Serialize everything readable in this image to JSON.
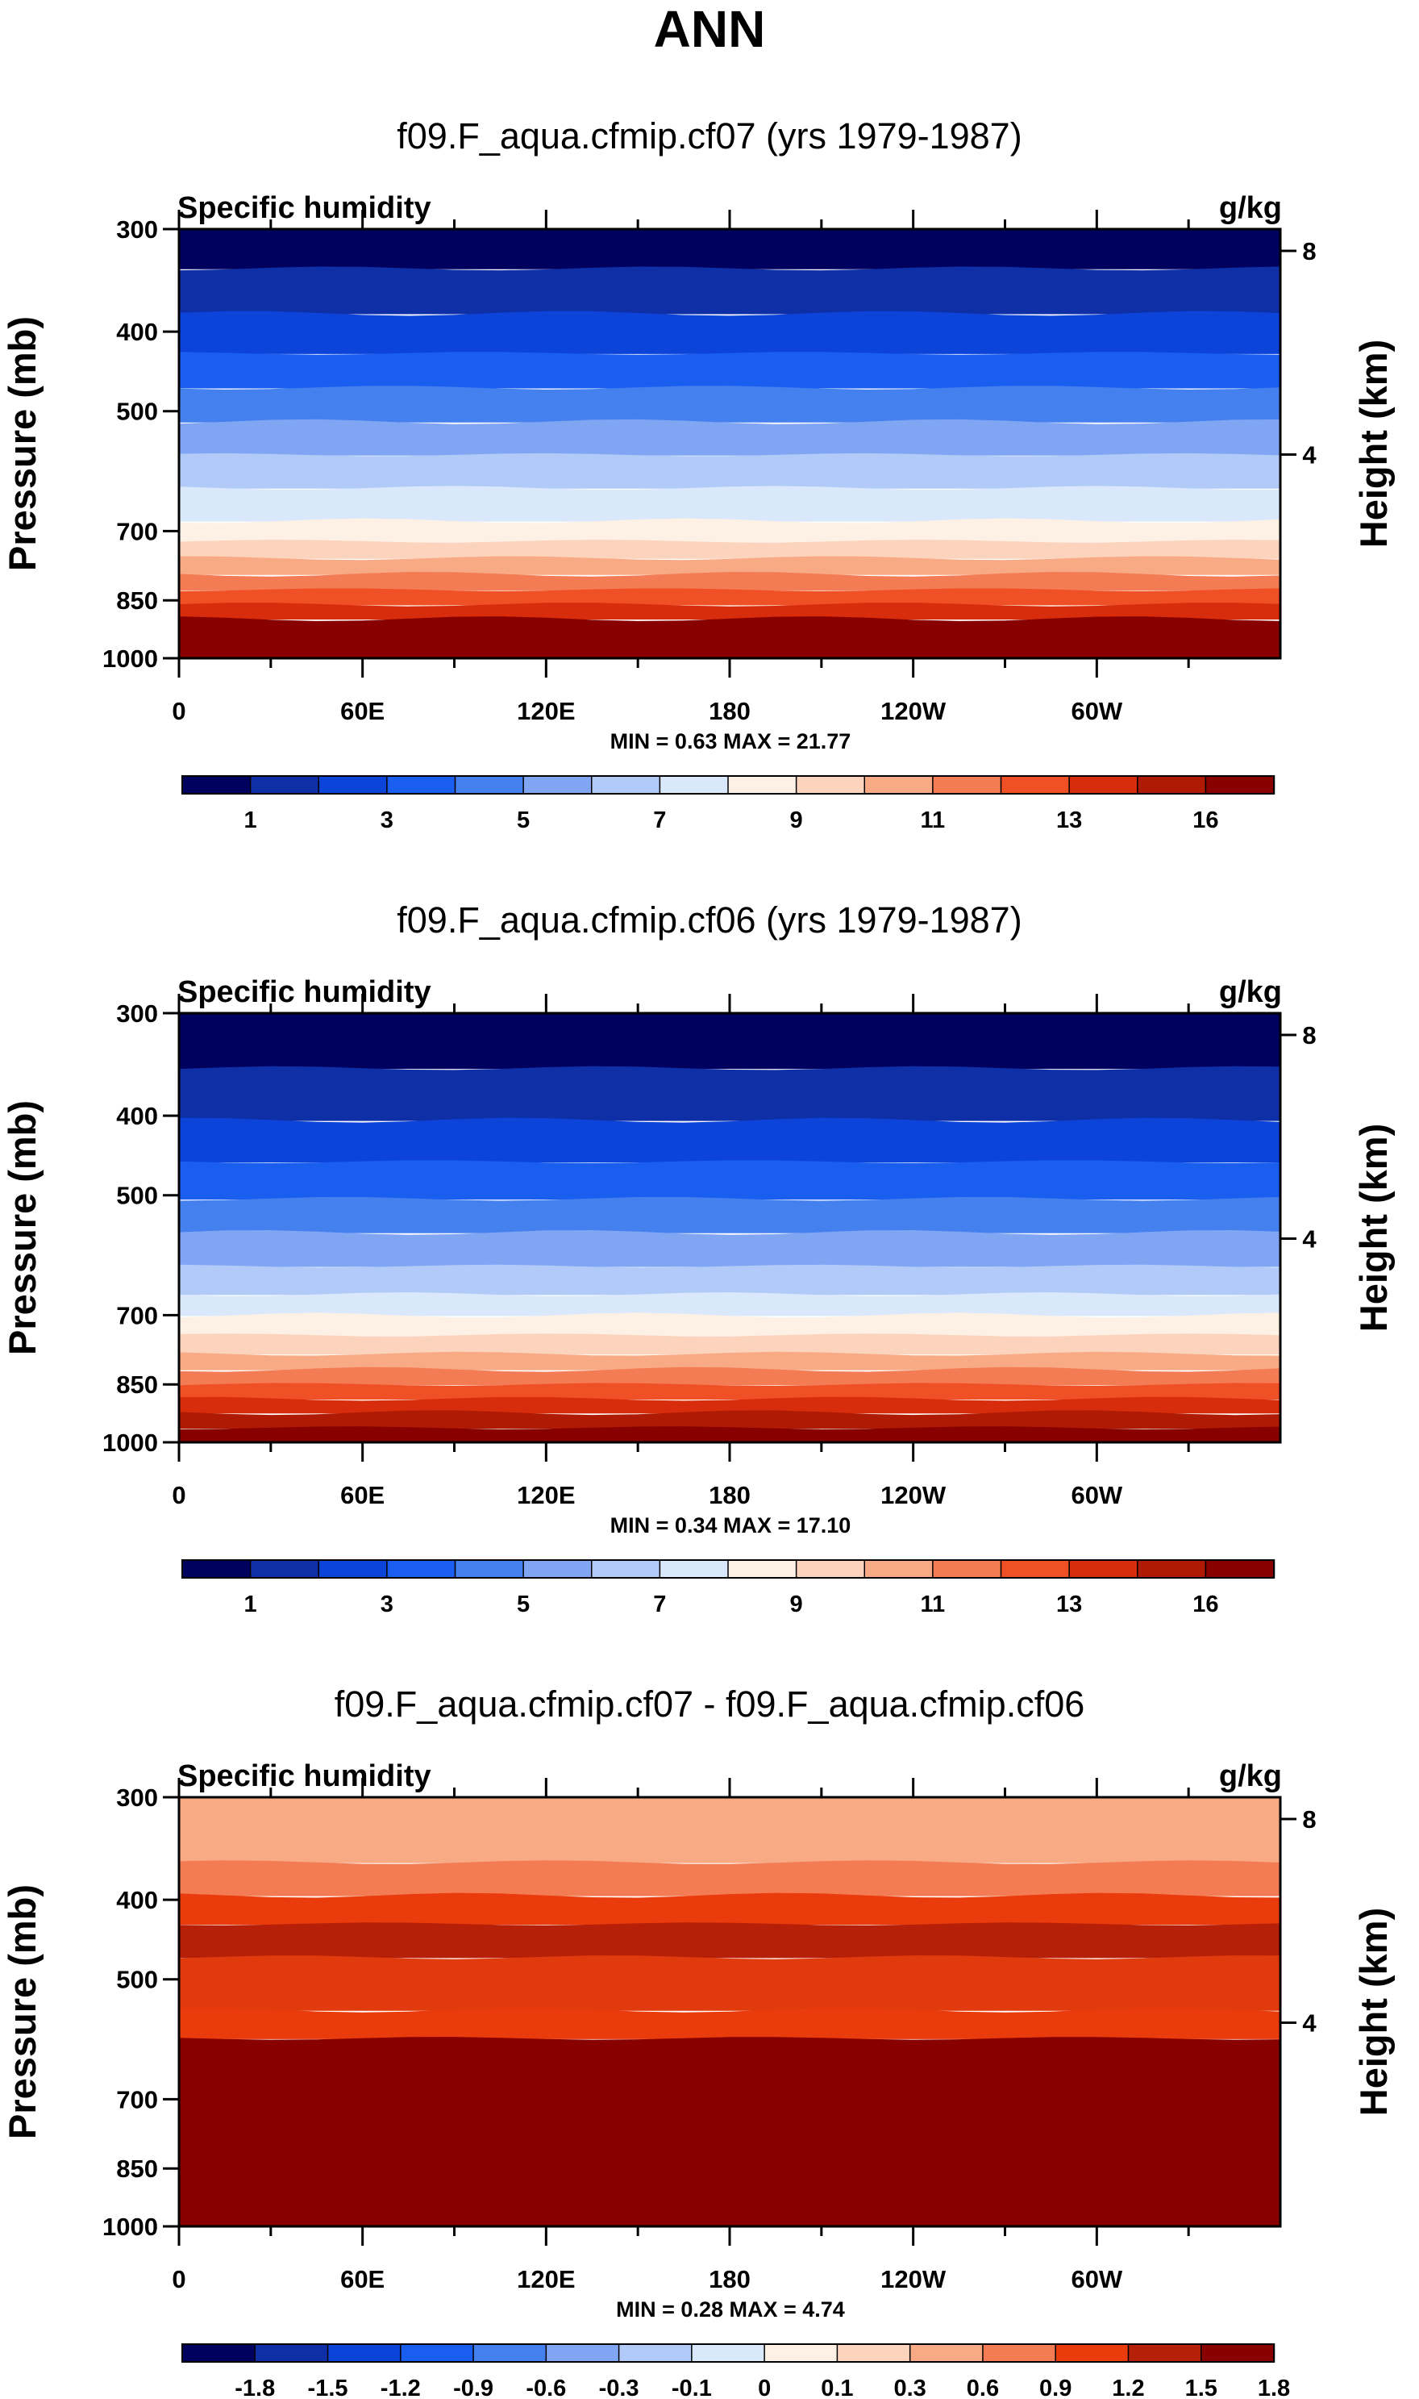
{
  "title": "ANN",
  "panels": [
    {
      "title": "f09.F_aqua.cfmip.cf07 (yrs 1979-1987)",
      "variable": "Specific humidity",
      "units": "g/kg",
      "min_label": "MIN =",
      "min_value": "0.63",
      "max_label": "MAX =",
      "max_value": "21.77"
    },
    {
      "title": "f09.F_aqua.cfmip.cf06 (yrs 1979-1987)",
      "variable": "Specific humidity",
      "units": "g/kg",
      "min_label": "MIN =",
      "min_value": "0.34",
      "max_label": "MAX =",
      "max_value": "17.10"
    },
    {
      "title": "f09.F_aqua.cfmip.cf07 - f09.F_aqua.cfmip.cf06",
      "variable": "Specific humidity",
      "units": "g/kg",
      "min_label": "MIN =",
      "min_value": "0.28",
      "max_label": "MAX =",
      "max_value": "4.74"
    }
  ],
  "colors": {
    "model_palette": [
      "#00005f",
      "#0f2fa7",
      "#0c43d9",
      "#1a5ef0",
      "#4580ef",
      "#7fa5f3",
      "#b1caf8",
      "#d9e9fb",
      "#fdf0e4",
      "#fcd3bd",
      "#f8aa85",
      "#f47c55",
      "#f05025",
      "#d72d0d",
      "#af1a05",
      "#880000"
    ],
    "diff_palette": [
      "#00005f",
      "#0f2fa7",
      "#0c43d9",
      "#1a5ef0",
      "#4580ef",
      "#7fa5f3",
      "#b1caf8",
      "#d9e9fb",
      "#fdf0e4",
      "#fcd3bd",
      "#f8aa85",
      "#f47c55",
      "#ea3b0c",
      "#b72008",
      "#880000"
    ]
  },
  "chart_data": [
    {
      "type": "contour",
      "title": "f09.F_aqua.cfmip.cf07 (yrs 1979-1987)",
      "variable": "Specific humidity",
      "units": "g/kg",
      "x_ticks": [
        "0",
        "60E",
        "120E",
        "180",
        "120W",
        "60W"
      ],
      "x_tick_degrees": [
        0,
        60,
        120,
        180,
        240,
        300
      ],
      "xlim": [
        0,
        360
      ],
      "y_ticks": [
        "300",
        "400",
        "500",
        "700",
        "850",
        "1000"
      ],
      "y_tick_values": [
        300,
        400,
        500,
        700,
        850,
        1000
      ],
      "ylim": [
        1000,
        300
      ],
      "yscale": "log",
      "ylabel": "Pressure (mb)",
      "y2label": "Height (km)",
      "y2_ticks": [
        "8",
        "4"
      ],
      "y2_tick_values_km": [
        8,
        4
      ],
      "colorbar_levels": [
        0.5,
        1,
        2,
        3,
        4,
        5,
        6,
        7,
        8,
        9,
        10,
        11,
        12,
        13,
        14,
        16
      ],
      "colorbar_labels": [
        "1",
        "3",
        "5",
        "7",
        "9",
        "11",
        "13",
        "16"
      ],
      "min": 0.63,
      "max": 21.77,
      "band_boundaries_mb": [
        300,
        335,
        380,
        425,
        468,
        515,
        565,
        620,
        680,
        720,
        755,
        790,
        825,
        860,
        895,
        1000
      ],
      "band_colors": [
        "#00005f",
        "#0f2fa7",
        "#0c43d9",
        "#1a5ef0",
        "#4580ef",
        "#7fa5f3",
        "#b1caf8",
        "#d9e9fb",
        "#fdf0e4",
        "#fcd3bd",
        "#f8aa85",
        "#f47c55",
        "#f05025",
        "#d72d0d",
        "#880000"
      ]
    },
    {
      "type": "contour",
      "title": "f09.F_aqua.cfmip.cf06 (yrs 1979-1987)",
      "variable": "Specific humidity",
      "units": "g/kg",
      "x_ticks": [
        "0",
        "60E",
        "120E",
        "180",
        "120W",
        "60W"
      ],
      "x_tick_degrees": [
        0,
        60,
        120,
        180,
        240,
        300
      ],
      "xlim": [
        0,
        360
      ],
      "y_ticks": [
        "300",
        "400",
        "500",
        "700",
        "850",
        "1000"
      ],
      "y_tick_values": [
        300,
        400,
        500,
        700,
        850,
        1000
      ],
      "ylim": [
        1000,
        300
      ],
      "yscale": "log",
      "ylabel": "Pressure (mb)",
      "y2label": "Height (km)",
      "y2_ticks": [
        "8",
        "4"
      ],
      "y2_tick_values_km": [
        8,
        4
      ],
      "colorbar_levels": [
        0.5,
        1,
        2,
        3,
        4,
        5,
        6,
        7,
        8,
        9,
        10,
        11,
        12,
        13,
        14,
        16
      ],
      "colorbar_labels": [
        "1",
        "3",
        "5",
        "7",
        "9",
        "11",
        "13",
        "16"
      ],
      "min": 0.34,
      "max": 17.1,
      "band_boundaries_mb": [
        300,
        350,
        405,
        455,
        505,
        555,
        610,
        660,
        700,
        740,
        780,
        815,
        850,
        885,
        920,
        960,
        1000
      ],
      "band_colors": [
        "#00005f",
        "#0f2fa7",
        "#0c43d9",
        "#1a5ef0",
        "#4580ef",
        "#7fa5f3",
        "#b1caf8",
        "#d9e9fb",
        "#fdf0e4",
        "#fcd3bd",
        "#f8aa85",
        "#f47c55",
        "#f05025",
        "#d72d0d",
        "#af1a05",
        "#880000"
      ]
    },
    {
      "type": "contour",
      "title": "f09.F_aqua.cfmip.cf07 - f09.F_aqua.cfmip.cf06",
      "variable": "Specific humidity",
      "units": "g/kg",
      "x_ticks": [
        "0",
        "60E",
        "120E",
        "180",
        "120W",
        "60W"
      ],
      "x_tick_degrees": [
        0,
        60,
        120,
        180,
        240,
        300
      ],
      "xlim": [
        0,
        360
      ],
      "y_ticks": [
        "300",
        "400",
        "500",
        "700",
        "850",
        "1000"
      ],
      "y_tick_values": [
        300,
        400,
        500,
        700,
        850,
        1000
      ],
      "ylim": [
        1000,
        300
      ],
      "yscale": "log",
      "ylabel": "Pressure (mb)",
      "y2label": "Height (km)",
      "y2_ticks": [
        "8",
        "4"
      ],
      "y2_tick_values_km": [
        8,
        4
      ],
      "colorbar_levels": [
        -1.8,
        -1.5,
        -1.2,
        -0.9,
        -0.6,
        -0.3,
        -0.1,
        0,
        0.1,
        0.3,
        0.6,
        0.9,
        1.2,
        1.5,
        1.8
      ],
      "colorbar_labels": [
        "-1.8",
        "-1.5",
        "-1.2",
        "-0.9",
        "-0.6",
        "-0.3",
        "-0.1",
        "0",
        "0.1",
        "0.3",
        "0.6",
        "0.9",
        "1.2",
        "1.5",
        "1.8"
      ],
      "min": 0.28,
      "max": 4.74,
      "band_boundaries_mb": [
        300,
        360,
        395,
        428,
        470,
        545,
        590,
        1000
      ],
      "band_colors": [
        "#f8aa85",
        "#f47c55",
        "#ea3b0c",
        "#b72008",
        "#e13a0c",
        "#ea3b0c",
        "#880000"
      ]
    }
  ]
}
